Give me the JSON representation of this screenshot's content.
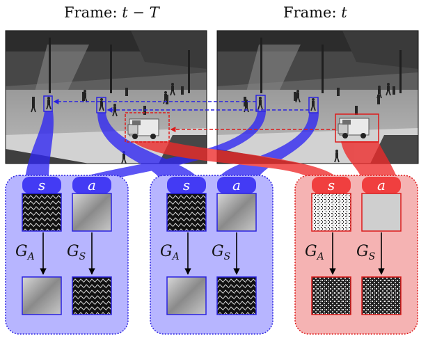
{
  "frames": {
    "previous": {
      "title_prefix": "Frame: ",
      "title_math": "t − T"
    },
    "current": {
      "title_prefix": "Frame: ",
      "title_math": "t"
    }
  },
  "groups": [
    {
      "id": "person-prev",
      "color": "blue",
      "s_label": "s",
      "a_label": "a",
      "ga_label": "G_A",
      "gs_label": "G_S"
    },
    {
      "id": "person-curr",
      "color": "blue",
      "s_label": "s",
      "a_label": "a",
      "ga_label": "G_A",
      "gs_label": "G_S"
    },
    {
      "id": "vehicle",
      "color": "red",
      "s_label": "s",
      "a_label": "a",
      "ga_label": "G_A",
      "gs_label": "G_S"
    }
  ],
  "colors": {
    "blue_fill": "#b7b5ff",
    "blue_stroke": "#2a22e0",
    "blue_ribbon": "#2f26f2",
    "red_fill": "#f5b3b3",
    "red_stroke": "#dd1a1a",
    "red_ribbon": "#ee2a2a"
  }
}
